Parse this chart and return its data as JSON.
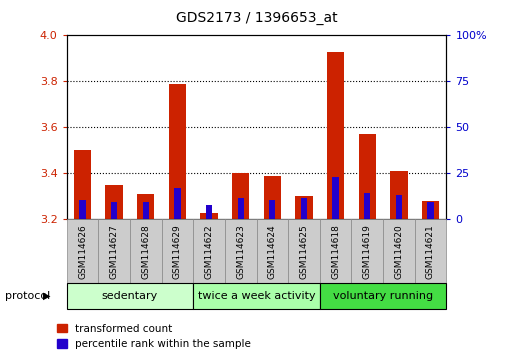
{
  "title": "GDS2173 / 1396653_at",
  "samples": [
    "GSM114626",
    "GSM114627",
    "GSM114628",
    "GSM114629",
    "GSM114622",
    "GSM114623",
    "GSM114624",
    "GSM114625",
    "GSM114618",
    "GSM114619",
    "GSM114620",
    "GSM114621"
  ],
  "red_values": [
    3.5,
    3.35,
    3.31,
    3.79,
    3.23,
    3.4,
    3.39,
    3.3,
    3.93,
    3.57,
    3.41,
    3.28
  ],
  "blue_values": [
    3.285,
    3.275,
    3.275,
    3.335,
    3.265,
    3.295,
    3.285,
    3.295,
    3.385,
    3.315,
    3.305,
    3.275
  ],
  "y_min": 3.2,
  "y_max": 4.0,
  "y_ticks": [
    3.2,
    3.4,
    3.6,
    3.8,
    4.0
  ],
  "y2_ticks": [
    0,
    25,
    50,
    75,
    100
  ],
  "y2_tick_labels": [
    "0",
    "25",
    "50",
    "75",
    "100%"
  ],
  "groups": [
    {
      "label": "sedentary",
      "start": 0,
      "end": 4,
      "color": "#ccffcc"
    },
    {
      "label": "twice a week activity",
      "start": 4,
      "end": 8,
      "color": "#aaffaa"
    },
    {
      "label": "voluntary running",
      "start": 8,
      "end": 12,
      "color": "#44dd44"
    }
  ],
  "bar_width": 0.55,
  "blue_bar_width": 0.2,
  "red_color": "#cc2200",
  "blue_color": "#2200cc",
  "bg_color": "#ffffff",
  "tick_label_color_left": "#cc2200",
  "tick_label_color_right": "#0000cc",
  "legend_red": "transformed count",
  "legend_blue": "percentile rank within the sample",
  "protocol_label": "protocol",
  "sample_box_color": "#cccccc",
  "sample_box_edge": "#888888"
}
